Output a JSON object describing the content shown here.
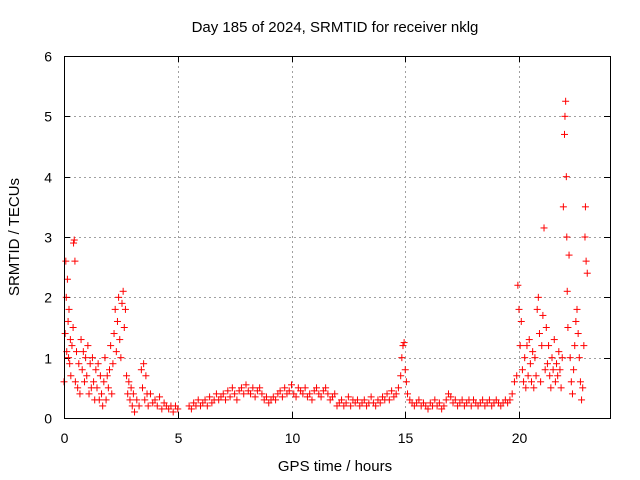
{
  "chart_data": {
    "type": "scatter",
    "title": "Day 185 of 2024, SRMTID for receiver nklg",
    "xlabel": "GPS time / hours",
    "ylabel": "SRMTID / TECUs",
    "xlim": [
      0,
      24
    ],
    "ylim": [
      0,
      6
    ],
    "x_ticks": [
      0,
      5,
      10,
      15,
      20
    ],
    "x_tick_labels": [
      "0",
      "5",
      "10",
      "15",
      "20"
    ],
    "y_ticks": [
      0,
      1,
      2,
      3,
      4,
      5,
      6
    ],
    "y_tick_labels": [
      "0",
      "1",
      "2",
      "3",
      "4",
      "5",
      "6"
    ],
    "grid": true,
    "marker": "plus",
    "series": [
      {
        "name": "SRMTID",
        "color": "#ff0000",
        "points": [
          [
            0.0,
            0.6
          ],
          [
            0.05,
            1.4
          ],
          [
            0.08,
            2.6
          ],
          [
            0.1,
            2.0
          ],
          [
            0.12,
            1.1
          ],
          [
            0.15,
            2.3
          ],
          [
            0.18,
            1.6
          ],
          [
            0.2,
            1.0
          ],
          [
            0.22,
            1.8
          ],
          [
            0.25,
            0.9
          ],
          [
            0.28,
            1.3
          ],
          [
            0.3,
            0.7
          ],
          [
            0.35,
            1.2
          ],
          [
            0.4,
            1.5
          ],
          [
            0.42,
            2.9
          ],
          [
            0.45,
            2.95
          ],
          [
            0.48,
            2.6
          ],
          [
            0.5,
            0.6
          ],
          [
            0.55,
            1.1
          ],
          [
            0.6,
            0.5
          ],
          [
            0.65,
            0.9
          ],
          [
            0.7,
            0.4
          ],
          [
            0.75,
            1.3
          ],
          [
            0.8,
            0.8
          ],
          [
            0.85,
            1.1
          ],
          [
            0.9,
            0.6
          ],
          [
            0.95,
            1.0
          ],
          [
            1.0,
            0.7
          ],
          [
            1.05,
            1.2
          ],
          [
            1.1,
            0.4
          ],
          [
            1.15,
            0.9
          ],
          [
            1.2,
            0.5
          ],
          [
            1.25,
            1.0
          ],
          [
            1.3,
            0.6
          ],
          [
            1.35,
            0.3
          ],
          [
            1.4,
            0.8
          ],
          [
            1.45,
            0.5
          ],
          [
            1.5,
            0.9
          ],
          [
            1.55,
            0.3
          ],
          [
            1.6,
            0.7
          ],
          [
            1.65,
            0.4
          ],
          [
            1.7,
            0.2
          ],
          [
            1.75,
            0.6
          ],
          [
            1.8,
            1.0
          ],
          [
            1.85,
            0.3
          ],
          [
            1.9,
            0.7
          ],
          [
            1.95,
            0.5
          ],
          [
            2.0,
            0.8
          ],
          [
            2.05,
            1.2
          ],
          [
            2.1,
            0.4
          ],
          [
            2.15,
            0.9
          ],
          [
            2.2,
            1.4
          ],
          [
            2.25,
            1.8
          ],
          [
            2.3,
            1.1
          ],
          [
            2.35,
            1.6
          ],
          [
            2.4,
            2.0
          ],
          [
            2.45,
            1.3
          ],
          [
            2.5,
            1.0
          ],
          [
            2.55,
            1.9
          ],
          [
            2.6,
            2.1
          ],
          [
            2.65,
            1.5
          ],
          [
            2.7,
            1.8
          ],
          [
            2.75,
            0.7
          ],
          [
            2.8,
            0.4
          ],
          [
            2.85,
            0.6
          ],
          [
            2.9,
            0.3
          ],
          [
            2.95,
            0.5
          ],
          [
            3.0,
            0.2
          ],
          [
            3.05,
            0.4
          ],
          [
            3.1,
            0.1
          ],
          [
            3.2,
            0.3
          ],
          [
            3.3,
            0.2
          ],
          [
            3.4,
            0.8
          ],
          [
            3.45,
            0.5
          ],
          [
            3.5,
            0.9
          ],
          [
            3.55,
            0.3
          ],
          [
            3.6,
            0.7
          ],
          [
            3.65,
            0.4
          ],
          [
            3.7,
            0.2
          ],
          [
            3.8,
            0.4
          ],
          [
            3.9,
            0.25
          ],
          [
            4.0,
            0.3
          ],
          [
            4.1,
            0.2
          ],
          [
            4.2,
            0.35
          ],
          [
            4.3,
            0.15
          ],
          [
            4.4,
            0.25
          ],
          [
            4.5,
            0.2
          ],
          [
            4.6,
            0.15
          ],
          [
            4.7,
            0.2
          ],
          [
            4.8,
            0.1
          ],
          [
            4.9,
            0.2
          ],
          [
            5.0,
            0.15
          ],
          [
            5.5,
            0.2
          ],
          [
            5.6,
            0.15
          ],
          [
            5.7,
            0.25
          ],
          [
            5.8,
            0.2
          ],
          [
            5.9,
            0.3
          ],
          [
            6.0,
            0.2
          ],
          [
            6.1,
            0.25
          ],
          [
            6.2,
            0.3
          ],
          [
            6.3,
            0.2
          ],
          [
            6.4,
            0.35
          ],
          [
            6.5,
            0.25
          ],
          [
            6.6,
            0.3
          ],
          [
            6.7,
            0.4
          ],
          [
            6.8,
            0.3
          ],
          [
            6.9,
            0.35
          ],
          [
            7.0,
            0.4
          ],
          [
            7.1,
            0.3
          ],
          [
            7.2,
            0.45
          ],
          [
            7.3,
            0.35
          ],
          [
            7.4,
            0.5
          ],
          [
            7.5,
            0.4
          ],
          [
            7.6,
            0.3
          ],
          [
            7.7,
            0.45
          ],
          [
            7.8,
            0.5
          ],
          [
            7.9,
            0.4
          ],
          [
            8.0,
            0.55
          ],
          [
            8.1,
            0.45
          ],
          [
            8.2,
            0.4
          ],
          [
            8.3,
            0.5
          ],
          [
            8.4,
            0.35
          ],
          [
            8.5,
            0.45
          ],
          [
            8.6,
            0.5
          ],
          [
            8.7,
            0.4
          ],
          [
            8.8,
            0.3
          ],
          [
            8.9,
            0.35
          ],
          [
            9.0,
            0.25
          ],
          [
            9.1,
            0.3
          ],
          [
            9.2,
            0.35
          ],
          [
            9.3,
            0.3
          ],
          [
            9.4,
            0.4
          ],
          [
            9.5,
            0.45
          ],
          [
            9.6,
            0.35
          ],
          [
            9.7,
            0.5
          ],
          [
            9.8,
            0.4
          ],
          [
            9.9,
            0.45
          ],
          [
            10.0,
            0.55
          ],
          [
            10.1,
            0.4
          ],
          [
            10.2,
            0.35
          ],
          [
            10.3,
            0.5
          ],
          [
            10.4,
            0.45
          ],
          [
            10.5,
            0.4
          ],
          [
            10.6,
            0.5
          ],
          [
            10.7,
            0.35
          ],
          [
            10.8,
            0.4
          ],
          [
            10.9,
            0.3
          ],
          [
            11.0,
            0.45
          ],
          [
            11.1,
            0.5
          ],
          [
            11.2,
            0.4
          ],
          [
            11.3,
            0.35
          ],
          [
            11.4,
            0.45
          ],
          [
            11.5,
            0.5
          ],
          [
            11.6,
            0.4
          ],
          [
            11.7,
            0.3
          ],
          [
            11.8,
            0.35
          ],
          [
            11.9,
            0.4
          ],
          [
            12.0,
            0.2
          ],
          [
            12.1,
            0.25
          ],
          [
            12.2,
            0.3
          ],
          [
            12.3,
            0.2
          ],
          [
            12.4,
            0.25
          ],
          [
            12.5,
            0.35
          ],
          [
            12.6,
            0.2
          ],
          [
            12.7,
            0.3
          ],
          [
            12.8,
            0.25
          ],
          [
            12.9,
            0.3
          ],
          [
            13.0,
            0.2
          ],
          [
            13.1,
            0.25
          ],
          [
            13.2,
            0.3
          ],
          [
            13.3,
            0.2
          ],
          [
            13.4,
            0.25
          ],
          [
            13.5,
            0.35
          ],
          [
            13.6,
            0.25
          ],
          [
            13.7,
            0.2
          ],
          [
            13.8,
            0.3
          ],
          [
            13.9,
            0.25
          ],
          [
            14.0,
            0.35
          ],
          [
            14.1,
            0.3
          ],
          [
            14.2,
            0.4
          ],
          [
            14.3,
            0.3
          ],
          [
            14.4,
            0.45
          ],
          [
            14.5,
            0.35
          ],
          [
            14.6,
            0.4
          ],
          [
            14.7,
            0.5
          ],
          [
            14.8,
            0.7
          ],
          [
            14.85,
            1.0
          ],
          [
            14.9,
            1.2
          ],
          [
            14.95,
            1.25
          ],
          [
            15.0,
            0.8
          ],
          [
            15.05,
            0.6
          ],
          [
            15.1,
            0.4
          ],
          [
            15.2,
            0.3
          ],
          [
            15.3,
            0.25
          ],
          [
            15.4,
            0.2
          ],
          [
            15.5,
            0.25
          ],
          [
            15.6,
            0.3
          ],
          [
            15.7,
            0.2
          ],
          [
            15.8,
            0.25
          ],
          [
            15.9,
            0.2
          ],
          [
            16.0,
            0.15
          ],
          [
            16.1,
            0.25
          ],
          [
            16.2,
            0.2
          ],
          [
            16.3,
            0.3
          ],
          [
            16.4,
            0.2
          ],
          [
            16.5,
            0.25
          ],
          [
            16.6,
            0.15
          ],
          [
            16.7,
            0.2
          ],
          [
            16.8,
            0.3
          ],
          [
            16.9,
            0.4
          ],
          [
            17.0,
            0.35
          ],
          [
            17.1,
            0.25
          ],
          [
            17.2,
            0.3
          ],
          [
            17.3,
            0.2
          ],
          [
            17.4,
            0.25
          ],
          [
            17.5,
            0.3
          ],
          [
            17.6,
            0.2
          ],
          [
            17.7,
            0.25
          ],
          [
            17.8,
            0.3
          ],
          [
            17.9,
            0.2
          ],
          [
            18.0,
            0.3
          ],
          [
            18.1,
            0.25
          ],
          [
            18.2,
            0.2
          ],
          [
            18.3,
            0.25
          ],
          [
            18.4,
            0.3
          ],
          [
            18.5,
            0.2
          ],
          [
            18.6,
            0.25
          ],
          [
            18.7,
            0.3
          ],
          [
            18.8,
            0.2
          ],
          [
            18.9,
            0.25
          ],
          [
            19.0,
            0.3
          ],
          [
            19.1,
            0.25
          ],
          [
            19.2,
            0.2
          ],
          [
            19.3,
            0.25
          ],
          [
            19.4,
            0.3
          ],
          [
            19.5,
            0.25
          ],
          [
            19.6,
            0.3
          ],
          [
            19.7,
            0.4
          ],
          [
            19.8,
            0.6
          ],
          [
            19.9,
            0.7
          ],
          [
            19.95,
            2.2
          ],
          [
            20.0,
            1.8
          ],
          [
            20.05,
            1.2
          ],
          [
            20.1,
            1.6
          ],
          [
            20.15,
            0.8
          ],
          [
            20.2,
            0.6
          ],
          [
            20.25,
            1.0
          ],
          [
            20.3,
            0.5
          ],
          [
            20.35,
            1.2
          ],
          [
            20.4,
            0.7
          ],
          [
            20.45,
            1.3
          ],
          [
            20.5,
            0.9
          ],
          [
            20.55,
            0.6
          ],
          [
            20.6,
            1.1
          ],
          [
            20.65,
            0.5
          ],
          [
            20.7,
            1.0
          ],
          [
            20.75,
            0.7
          ],
          [
            20.8,
            1.8
          ],
          [
            20.85,
            2.0
          ],
          [
            20.9,
            1.4
          ],
          [
            20.95,
            0.6
          ],
          [
            21.0,
            1.2
          ],
          [
            21.05,
            1.7
          ],
          [
            21.1,
            3.15
          ],
          [
            21.15,
            0.8
          ],
          [
            21.2,
            1.5
          ],
          [
            21.25,
            0.9
          ],
          [
            21.3,
            1.2
          ],
          [
            21.35,
            0.7
          ],
          [
            21.4,
            0.5
          ],
          [
            21.45,
            1.0
          ],
          [
            21.5,
            0.8
          ],
          [
            21.55,
            1.3
          ],
          [
            21.6,
            0.6
          ],
          [
            21.65,
            0.9
          ],
          [
            21.7,
            0.7
          ],
          [
            21.75,
            1.1
          ],
          [
            21.8,
            0.8
          ],
          [
            21.85,
            0.5
          ],
          [
            21.9,
            1.0
          ],
          [
            21.95,
            3.5
          ],
          [
            22.0,
            4.7
          ],
          [
            22.02,
            5.0
          ],
          [
            22.05,
            5.25
          ],
          [
            22.08,
            4.0
          ],
          [
            22.1,
            3.0
          ],
          [
            22.12,
            2.1
          ],
          [
            22.15,
            1.5
          ],
          [
            22.2,
            2.7
          ],
          [
            22.25,
            1.0
          ],
          [
            22.3,
            0.6
          ],
          [
            22.35,
            0.4
          ],
          [
            22.4,
            0.8
          ],
          [
            22.45,
            1.2
          ],
          [
            22.5,
            1.6
          ],
          [
            22.55,
            1.8
          ],
          [
            22.6,
            1.4
          ],
          [
            22.65,
            1.0
          ],
          [
            22.7,
            0.6
          ],
          [
            22.75,
            0.3
          ],
          [
            22.8,
            0.5
          ],
          [
            22.85,
            1.2
          ],
          [
            22.9,
            3.0
          ],
          [
            22.92,
            3.5
          ],
          [
            22.95,
            2.6
          ],
          [
            23.0,
            2.4
          ]
        ]
      }
    ]
  }
}
